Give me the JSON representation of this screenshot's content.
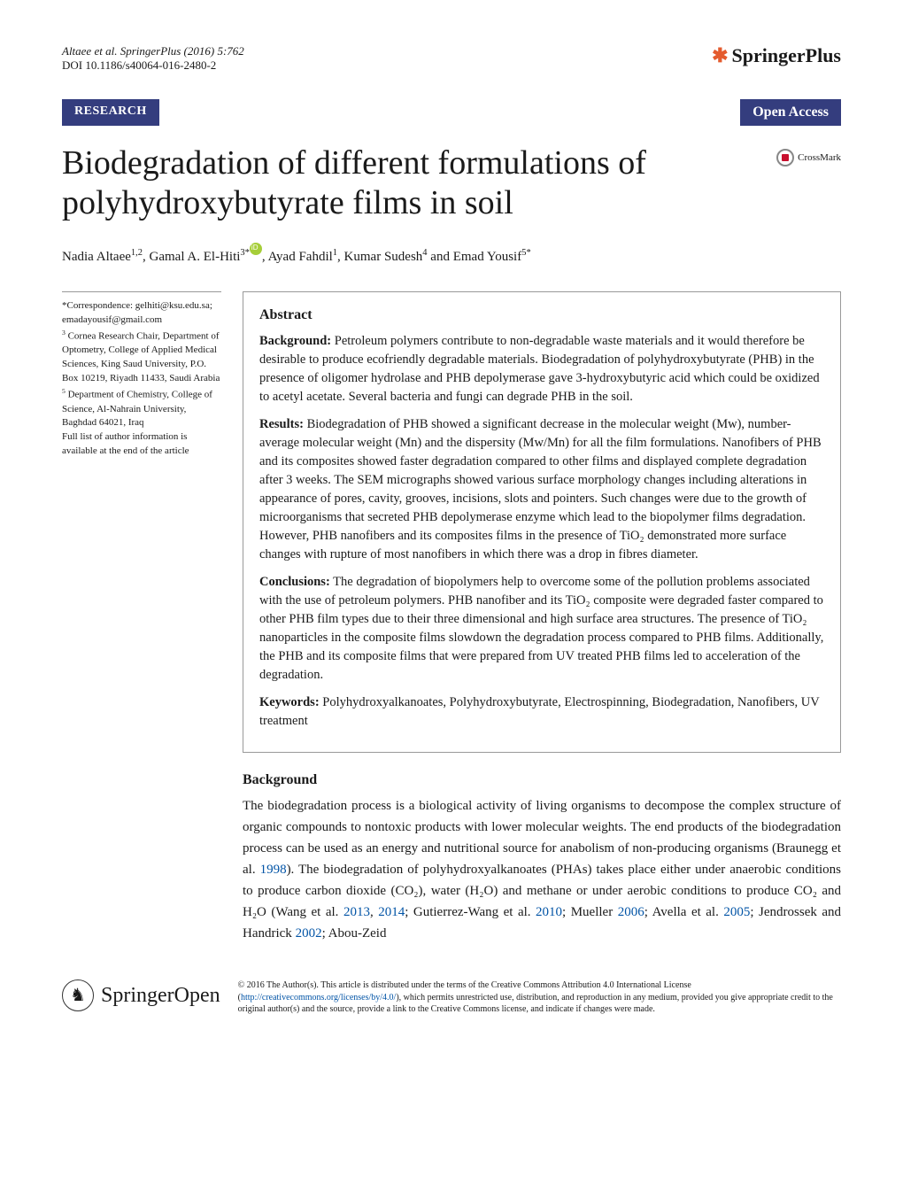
{
  "header": {
    "citation": "Altaee et al. SpringerPlus (2016) 5:762",
    "doi": "DOI 10.1186/s40064-016-2480-2",
    "journal_icon": "✱",
    "journal_name": "SpringerPlus"
  },
  "badges": {
    "research": "RESEARCH",
    "open_access": "Open Access"
  },
  "title": "Biodegradation of different formulations of polyhydroxybutyrate films in soil",
  "crossmark_label": "CrossMark",
  "authors_html": "Nadia Altaee<sup>1,2</sup>, Gamal A. El-Hiti<sup>3*</sup> , Ayad Fahdil<sup>1</sup>, Kumar Sudesh<sup>4</sup> and Emad Yousif<sup>5*</sup>",
  "sidebar": {
    "correspondence_label": "*Correspondence:",
    "correspondence": "gelhiti@ksu.edu.sa; emadayousif@gmail.com",
    "affil3": "Cornea Research Chair, Department of Optometry, College of Applied Medical Sciences, King Saud University, P.O. Box 10219, Riyadh 11433, Saudi Arabia",
    "affil5": "Department of Chemistry, College of Science, Al-Nahrain University, Baghdad 64021, Iraq",
    "full_list": "Full list of author information is available at the end of the article"
  },
  "abstract": {
    "heading": "Abstract",
    "background_label": "Background:",
    "background": "Petroleum polymers contribute to non-degradable waste materials and it would therefore be desirable to produce ecofriendly degradable materials. Biodegradation of polyhydroxybutyrate (PHB) in the presence of oligomer hydrolase and PHB depolymerase gave 3-hydroxybutyric acid which could be oxidized to acetyl acetate. Several bacteria and fungi can degrade PHB in the soil.",
    "results_label": "Results:",
    "results": "Biodegradation of PHB showed a significant decrease in the molecular weight (Mw), number-average molecular weight (Mn) and the dispersity (Mw/Mn) for all the film formulations. Nanofibers of PHB and its composites showed faster degradation compared to other films and displayed complete degradation after 3 weeks. The SEM micrographs showed various surface morphology changes including alterations in appearance of pores, cavity, grooves, incisions, slots and pointers. Such changes were due to the growth of microorganisms that secreted PHB depolymerase enzyme which lead to the biopolymer films degradation. However, PHB nanofibers and its composites films in the presence of TiO₂ demonstrated more surface changes with rupture of most nanofibers in which there was a drop in fibres diameter.",
    "conclusions_label": "Conclusions:",
    "conclusions": "The degradation of biopolymers help to overcome some of the pollution problems associated with the use of petroleum polymers. PHB nanofiber and its TiO₂ composite were degraded faster compared to other PHB film types due to their three dimensional and high surface area structures. The presence of TiO₂ nanoparticles in the composite films slowdown the degradation process compared to PHB films. Additionally, the PHB and its composite films that were prepared from UV treated PHB films led to acceleration of the degradation.",
    "keywords_label": "Keywords:",
    "keywords": "Polyhydroxyalkanoates, Polyhydroxybutyrate, Electrospinning, Biodegradation, Nanofibers, UV treatment"
  },
  "background_section": {
    "heading": "Background",
    "text_pre": "The biodegradation process is a biological activity of living organisms to decompose the complex structure of organic compounds to nontoxic products with lower molecular weights. The end products of the biodegradation process can be used as an energy and nutritional source for anabolism of non-producing organisms (Braunegg et al. ",
    "ref1": "1998",
    "text_mid1": "). The biodegradation of polyhydroxyalkanoates (PHAs) takes place either under anaerobic conditions to produce carbon dioxide (CO₂), water (H₂O) and methane or under aerobic conditions to produce CO₂ and H₂O (Wang et al. ",
    "ref2": "2013",
    "text_c1": ", ",
    "ref3": "2014",
    "text_mid2": "; Gutierrez-Wang et al. ",
    "ref4": "2010",
    "text_mid3": "; Mueller ",
    "ref5": "2006",
    "text_mid4": "; Avella et al. ",
    "ref6": "2005",
    "text_mid5": "; Jendrossek and Handrick ",
    "ref7": "2002",
    "text_end": "; Abou-Zeid"
  },
  "footer": {
    "springer_text": "Springer",
    "open_text": "Open",
    "license_pre": "© 2016 The Author(s). This article is distributed under the terms of the Creative Commons Attribution 4.0 International License (",
    "license_link": "http://creativecommons.org/licenses/by/4.0/",
    "license_post": "), which permits unrestricted use, distribution, and reproduction in any medium, provided you give appropriate credit to the original author(s) and the source, provide a link to the Creative Commons license, and indicate if changes were made."
  },
  "colors": {
    "badge_bg": "#343d7e",
    "accent_orange": "#e45b2e",
    "link_blue": "#0254a6",
    "orcid_green": "#a6ce39"
  }
}
